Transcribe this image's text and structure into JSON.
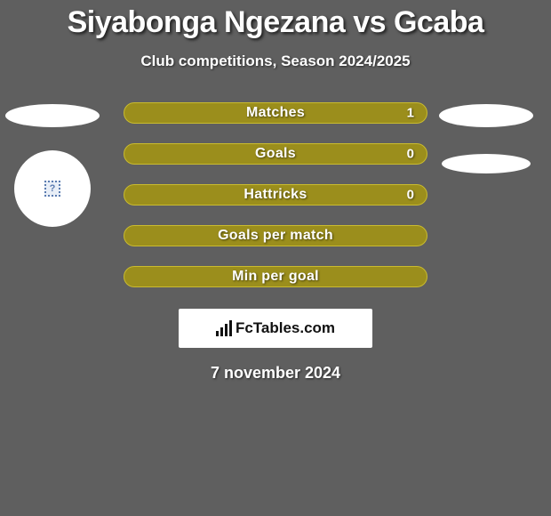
{
  "title": "Siyabonga Ngezana vs Gcaba",
  "subtitle": "Club competitions, Season 2024/2025",
  "date": "7 november 2024",
  "brand": {
    "text": "FcTables.com"
  },
  "colors": {
    "background": "#5f5f5f",
    "bar_fill": "#9b8e1c",
    "bar_border": "#c9bb2f",
    "text": "#ffffff",
    "brand_bg": "#ffffff"
  },
  "stats": [
    {
      "label": "Matches",
      "value": "1",
      "has_value": true
    },
    {
      "label": "Goals",
      "value": "0",
      "has_value": true
    },
    {
      "label": "Hattricks",
      "value": "0",
      "has_value": true
    },
    {
      "label": "Goals per match",
      "value": "",
      "has_value": false
    },
    {
      "label": "Min per goal",
      "value": "",
      "has_value": false
    }
  ],
  "left_avatars": {
    "top_ellipse": true,
    "circle_with_question": true
  },
  "right_avatars": {
    "top_ellipse": true,
    "second_ellipse": true
  }
}
